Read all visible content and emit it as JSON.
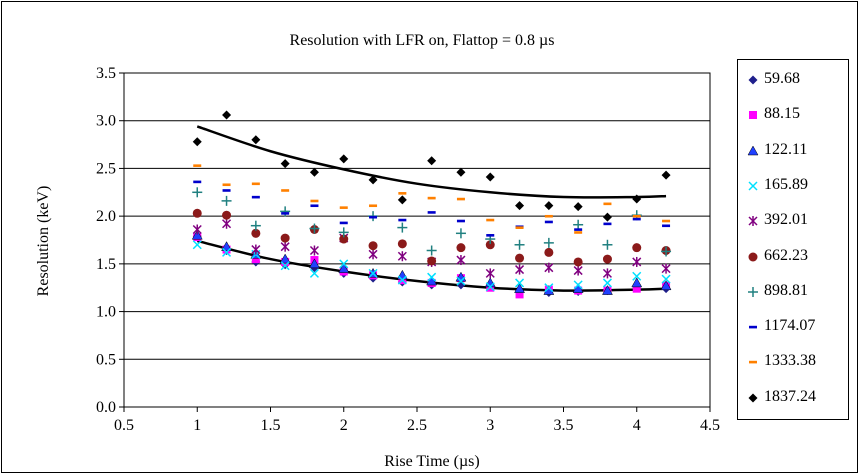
{
  "chart_data": {
    "type": "scatter",
    "title": "Resolution with LFR on, Flattop = 0.8 µs",
    "xlabel": "Rise Time (µs)",
    "ylabel": "Resolution (keV)",
    "xlim": [
      0.5,
      4.5
    ],
    "ylim": [
      0.0,
      3.5
    ],
    "xticks": [
      "0.5",
      "1",
      "1.5",
      "2",
      "2.5",
      "3",
      "3.5",
      "4",
      "4.5"
    ],
    "yticks": [
      "0.0",
      "0.5",
      "1.0",
      "1.5",
      "2.0",
      "2.5",
      "3.0",
      "3.5"
    ],
    "grid": "horizontal",
    "legend_position": "right",
    "x": [
      1.0,
      1.2,
      1.4,
      1.6,
      1.8,
      2.0,
      2.2,
      2.4,
      2.6,
      2.8,
      3.0,
      3.2,
      3.4,
      3.6,
      3.8,
      4.0,
      4.2
    ],
    "series": [
      {
        "name": "59.68",
        "color": "#1f1f8c",
        "marker": "diamond",
        "values": [
          1.79,
          1.64,
          1.52,
          1.49,
          1.46,
          1.4,
          1.35,
          1.31,
          1.28,
          1.28,
          1.27,
          1.22,
          1.2,
          1.21,
          1.22,
          1.26,
          1.24
        ]
      },
      {
        "name": "88.15",
        "color": "#ff00ff",
        "marker": "square",
        "values": [
          1.78,
          1.65,
          1.55,
          1.52,
          1.54,
          1.42,
          1.38,
          1.33,
          1.3,
          1.35,
          1.25,
          1.18,
          1.23,
          1.22,
          1.22,
          1.24,
          1.27
        ]
      },
      {
        "name": "122.11",
        "color": "#2040ff",
        "marker": "triangle",
        "values": [
          1.8,
          1.68,
          1.6,
          1.55,
          1.5,
          1.45,
          1.4,
          1.38,
          1.32,
          1.36,
          1.3,
          1.24,
          1.22,
          1.24,
          1.22,
          1.3,
          1.27
        ]
      },
      {
        "name": "165.89",
        "color": "#00e0ff",
        "marker": "x",
        "values": [
          1.7,
          1.62,
          1.6,
          1.48,
          1.4,
          1.5,
          1.4,
          1.33,
          1.36,
          1.32,
          1.26,
          1.3,
          1.25,
          1.28,
          1.3,
          1.37,
          1.34
        ]
      },
      {
        "name": "392.01",
        "color": "#800080",
        "marker": "star",
        "values": [
          1.86,
          1.92,
          1.65,
          1.68,
          1.64,
          1.77,
          1.6,
          1.58,
          1.52,
          1.54,
          1.4,
          1.44,
          1.46,
          1.43,
          1.4,
          1.52,
          1.45
        ]
      },
      {
        "name": "662.23",
        "color": "#8b1a1a",
        "marker": "circle",
        "values": [
          2.03,
          2.01,
          1.82,
          1.77,
          1.86,
          1.76,
          1.69,
          1.71,
          1.53,
          1.67,
          1.7,
          1.56,
          1.62,
          1.52,
          1.55,
          1.67,
          1.64
        ]
      },
      {
        "name": "898.81",
        "color": "#208080",
        "marker": "plus",
        "values": [
          2.25,
          2.16,
          1.9,
          2.05,
          1.87,
          1.83,
          2.0,
          1.88,
          1.64,
          1.82,
          1.76,
          1.7,
          1.72,
          1.91,
          1.7,
          2.01,
          1.63
        ]
      },
      {
        "name": "1174.07",
        "color": "#0000cc",
        "marker": "dash",
        "values": [
          2.36,
          2.27,
          2.2,
          2.03,
          2.11,
          1.93,
          1.99,
          1.96,
          2.04,
          1.95,
          1.8,
          1.89,
          1.94,
          1.86,
          1.92,
          1.97,
          1.9
        ]
      },
      {
        "name": "1333.38",
        "color": "#ff8000",
        "marker": "dash",
        "values": [
          2.53,
          2.33,
          2.34,
          2.27,
          2.16,
          2.09,
          2.11,
          2.24,
          2.19,
          2.18,
          1.96,
          1.88,
          2.0,
          1.83,
          2.13,
          2.0,
          1.95
        ]
      },
      {
        "name": "1837.24",
        "color": "#000000",
        "marker": "diamond",
        "values": [
          2.78,
          3.06,
          2.8,
          2.55,
          2.46,
          2.6,
          2.38,
          2.17,
          2.58,
          2.46,
          2.41,
          2.11,
          2.11,
          2.1,
          1.99,
          2.18,
          2.43
        ]
      }
    ],
    "trendlines": [
      {
        "type": "polynomial",
        "x": [
          1.0,
          1.5,
          2.0,
          2.5,
          3.0,
          3.5,
          4.0,
          4.2
        ],
        "values": [
          2.94,
          2.68,
          2.49,
          2.34,
          2.25,
          2.2,
          2.2,
          2.21
        ]
      },
      {
        "type": "polynomial",
        "x": [
          1.0,
          1.5,
          2.0,
          2.5,
          3.0,
          3.5,
          4.0,
          4.2
        ],
        "values": [
          1.74,
          1.55,
          1.42,
          1.32,
          1.25,
          1.22,
          1.23,
          1.24
        ]
      }
    ]
  }
}
